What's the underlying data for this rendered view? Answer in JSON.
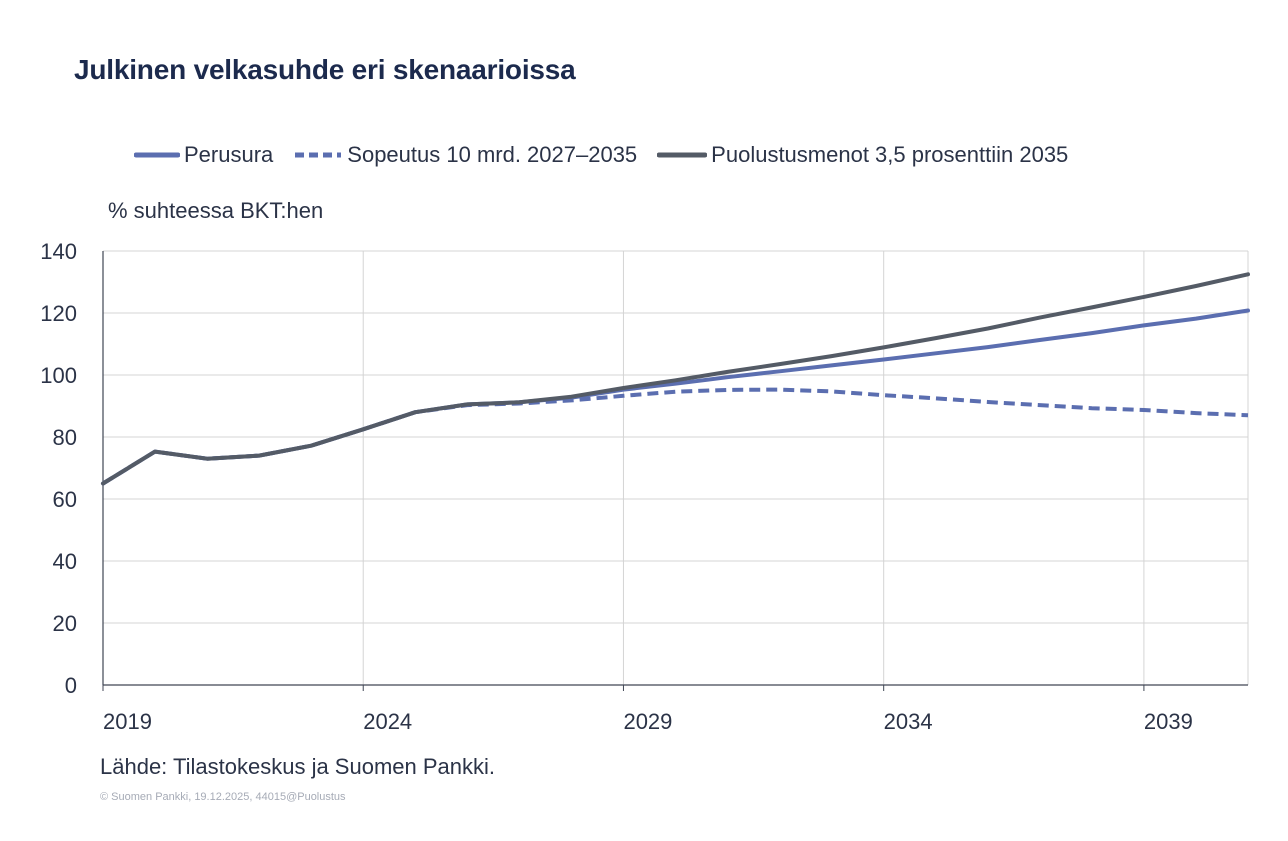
{
  "chart_data": {
    "type": "line",
    "title": "Julkinen velkasuhde eri skenaarioissa",
    "ylabel": "% suhteessa BKT:hen",
    "xlabel": "",
    "ylim": [
      0,
      140
    ],
    "xlim": [
      2019,
      2041
    ],
    "yticks": [
      0,
      20,
      40,
      60,
      80,
      100,
      120,
      140
    ],
    "xticks": [
      2019,
      2024,
      2029,
      2034,
      2039
    ],
    "grid": true,
    "legend_position": "top",
    "x": [
      2019,
      2020,
      2021,
      2022,
      2023,
      2024,
      2025,
      2026,
      2027,
      2028,
      2029,
      2030,
      2031,
      2032,
      2033,
      2034,
      2035,
      2036,
      2037,
      2038,
      2039,
      2040,
      2041
    ],
    "series": [
      {
        "name": "Perusura",
        "color": "#5b6eb0",
        "style": "solid",
        "values": [
          65,
          75.3,
          73,
          74,
          77.2,
          82.5,
          88,
          90.5,
          91.2,
          92.7,
          95.3,
          97.2,
          99.3,
          101.2,
          103.1,
          105,
          107,
          109,
          111.3,
          113.5,
          116,
          118.2,
          120.8
        ]
      },
      {
        "name": "Sopeutus 10 mrd. 2027–2035",
        "color": "#5b6eb0",
        "style": "dashed",
        "values": [
          65,
          75.3,
          73,
          74,
          77.2,
          82.5,
          88,
          90.3,
          90.8,
          91.8,
          93.3,
          94.6,
          95.2,
          95.3,
          94.7,
          93.5,
          92.5,
          91.3,
          90.3,
          89.3,
          88.7,
          87.7,
          87
        ]
      },
      {
        "name": "Puolustusmenot 3,5 prosenttiin 2035",
        "color": "#545b66",
        "style": "solid",
        "values": [
          65,
          75.3,
          73,
          74,
          77.2,
          82.5,
          88,
          90.5,
          91.2,
          93,
          95.8,
          98.3,
          101,
          103.5,
          106.1,
          108.9,
          111.9,
          115,
          118.5,
          121.8,
          125.2,
          128.7,
          132.5
        ]
      }
    ]
  },
  "legend_items": [
    "Perusura",
    "Sopeutus 10 mrd. 2027–2035",
    "Puolustusmenot 3,5 prosenttiin 2035"
  ],
  "source": "Lähde: Tilastokeskus ja Suomen Pankki.",
  "copyright": "© Suomen Pankki, 19.12.2025, 44015@Puolustus"
}
